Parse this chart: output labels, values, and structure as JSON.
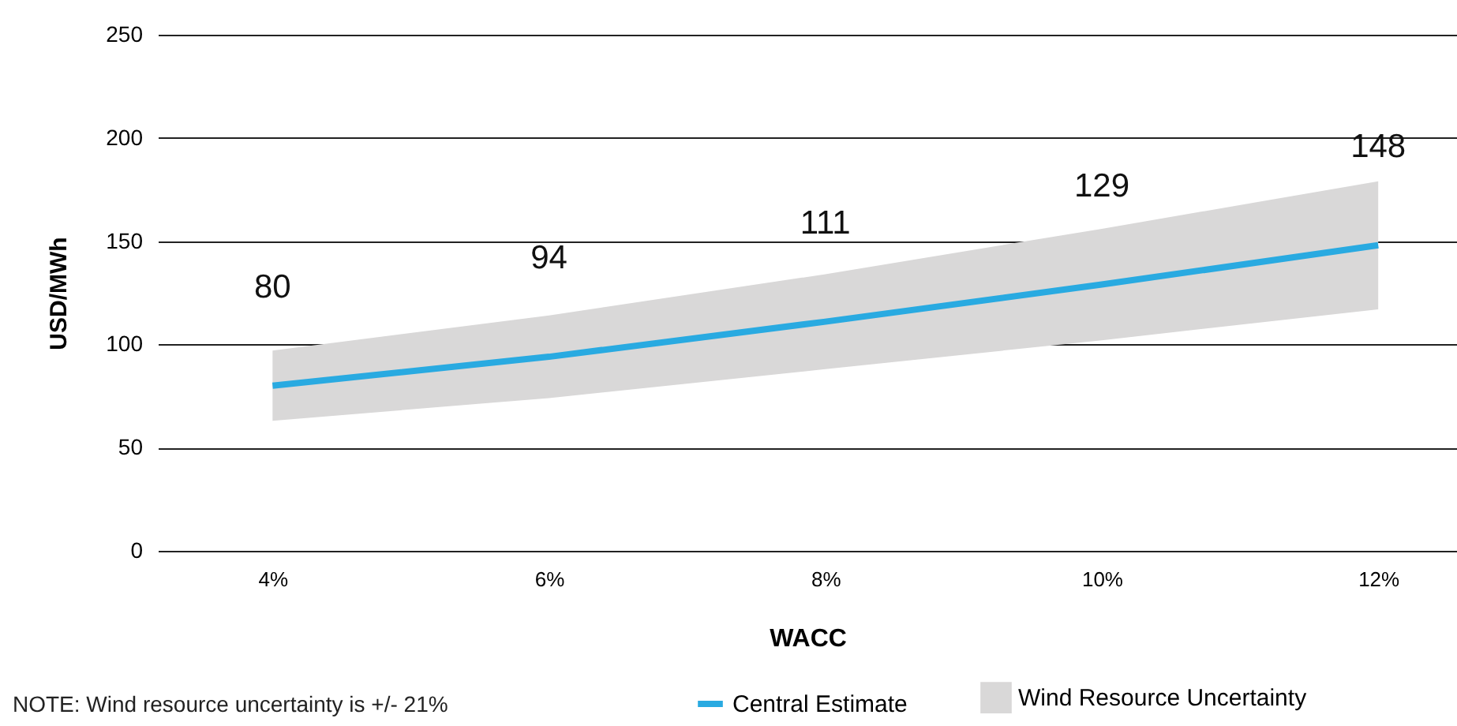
{
  "chart_data": {
    "type": "line",
    "xlabel": "WACC",
    "ylabel": "USD/MWh",
    "x": [
      4,
      6,
      8,
      10,
      12
    ],
    "series": [
      {
        "name": "Central Estimate",
        "color": "#29aae1",
        "values": [
          80,
          94,
          111,
          129,
          148
        ],
        "lower": [
          63,
          74,
          88,
          102,
          117
        ],
        "upper": [
          97,
          114,
          134,
          156,
          179
        ]
      }
    ],
    "xlim": [
      3.17,
      12.57
    ],
    "xticks": [
      {
        "value": 4,
        "label": "4%"
      },
      {
        "value": 6,
        "label": "6%"
      },
      {
        "value": 8,
        "label": "8%"
      },
      {
        "value": 10,
        "label": "10%"
      },
      {
        "value": 12,
        "label": "12%"
      }
    ],
    "ylim": [
      0,
      250
    ],
    "yticks": [
      0,
      50,
      100,
      150,
      200,
      250
    ],
    "grid": "y",
    "legend": "bottom",
    "data_labels": true,
    "marker": "none",
    "annotations": [
      "NOTE: Wind resource uncertainty is +/- 21%",
      "Wind Resource Uncertainty"
    ]
  }
}
